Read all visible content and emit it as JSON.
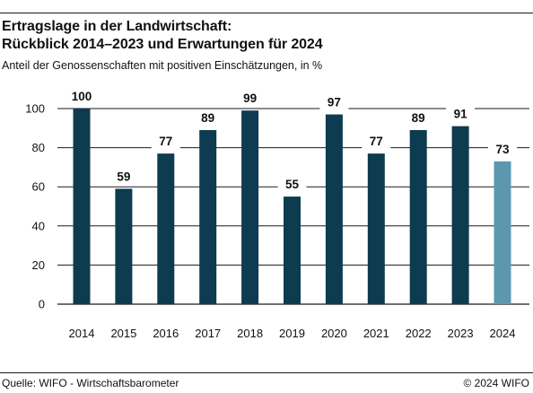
{
  "header": {
    "title_line1": "Ertragslage in der Landwirtschaft:",
    "title_line2": "Rückblick 2014–2023 und Erwartungen für 2024",
    "subtitle": "Anteil der Genossenschaften mit positiven Einschätzungen, in %"
  },
  "footer": {
    "source": "Quelle: WIFO - Wirtschaftsbarometer",
    "copyright": "© 2024 WIFO"
  },
  "chart_data": {
    "type": "bar",
    "title": "Ertragslage in der Landwirtschaft: Rückblick 2014–2023 und Erwartungen für 2024",
    "subtitle": "Anteil der Genossenschaften mit positiven Einschätzungen, in %",
    "categories": [
      "2014",
      "2015",
      "2016",
      "2017",
      "2018",
      "2019",
      "2020",
      "2021",
      "2022",
      "2023",
      "2024"
    ],
    "values": [
      100,
      59,
      77,
      89,
      99,
      55,
      97,
      77,
      89,
      91,
      73
    ],
    "data_labels": [
      "100",
      "59",
      "77",
      "89",
      "99",
      "55",
      "97",
      "77",
      "89",
      "91",
      "73"
    ],
    "yticks": [
      0,
      20,
      40,
      60,
      80,
      100
    ],
    "ylim": [
      0,
      100
    ],
    "grid": true,
    "colors": {
      "actual": "#0d3b50",
      "forecast": "#5b98b0",
      "grid": "#1a1a1a"
    },
    "highlight_category": "2024"
  }
}
